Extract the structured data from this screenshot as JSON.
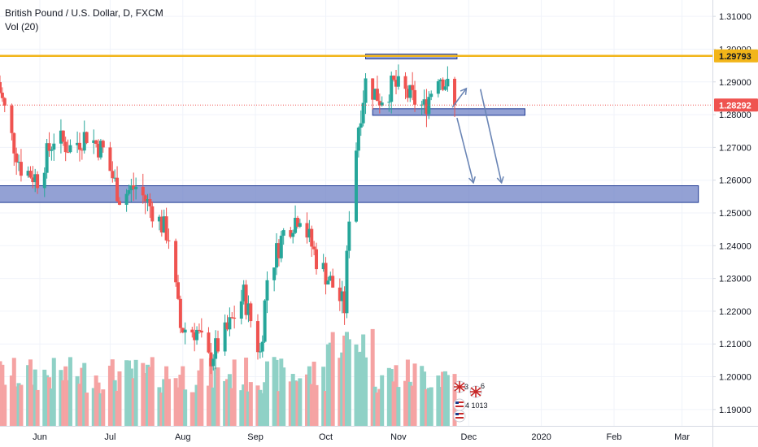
{
  "legend": {
    "title": "British Pound / U.S. Dollar, D, FXCM",
    "volume": "Vol (20)"
  },
  "colors": {
    "up": "#26a69a",
    "down": "#ef5350",
    "up_vol": "#8fd1c6",
    "down_vol": "#f5a3a3",
    "resistance": "#f2b519",
    "current": "#ef5350",
    "zone_fill": "#6f82c6",
    "zone_border": "#1f3a93",
    "arrow": "#6a85b5",
    "grid": "#f0f3fa",
    "axis_border": "#d6dae3"
  },
  "badges": {
    "uk_events": "3",
    "uk_events_2": "6",
    "us_events": "4 1013"
  },
  "chart_data": {
    "type": "candlestick",
    "title": "British Pound / U.S. Dollar, D, FXCM",
    "y_range": [
      1.185,
      1.315
    ],
    "y_ticks": [
      "1.31000",
      "1.30000",
      "1.29000",
      "1.28000",
      "1.27000",
      "1.26000",
      "1.25000",
      "1.24000",
      "1.23000",
      "1.22000",
      "1.21000",
      "1.20000",
      "1.19000"
    ],
    "x_ticks": [
      "Jun",
      "Jul",
      "Aug",
      "Sep",
      "Oct",
      "Nov",
      "Dec",
      "2020",
      "Feb",
      "Mar"
    ],
    "date_range": [
      "2019-05-15",
      "2020-03-14"
    ],
    "resistance_line": {
      "value": 1.29793,
      "label": "1.29793"
    },
    "current_price": {
      "value": 1.28292,
      "label": "1.28292"
    },
    "zones": [
      {
        "from": "2019-10-18",
        "to": "2019-11-26",
        "low": 1.2975,
        "high": 1.2985
      },
      {
        "from": "2019-10-21",
        "to": "2019-12-25",
        "low": 1.2798,
        "high": 1.2818
      },
      {
        "from": "2019-05-13",
        "to": "2020-03-08",
        "low": 1.2532,
        "high": 1.2583
      }
    ],
    "arrows": [
      {
        "from_date": "2019-11-24",
        "from_value": 1.2822,
        "to_date": "2019-11-30",
        "to_value": 1.288
      },
      {
        "from_date": "2019-11-26",
        "from_value": 1.279,
        "to_date": "2019-12-03",
        "to_value": 1.2592
      },
      {
        "from_date": "2019-12-06",
        "from_value": 1.2878,
        "to_date": "2019-12-15",
        "to_value": 1.2592
      }
    ],
    "close_waypoints": [
      [
        "2019-05-14",
        1.29
      ],
      [
        "2019-05-20",
        1.273
      ],
      [
        "2019-05-24",
        1.264
      ],
      [
        "2019-05-31",
        1.2605
      ],
      [
        "2019-06-07",
        1.273
      ],
      [
        "2019-06-14",
        1.27
      ],
      [
        "2019-06-21",
        1.274
      ],
      [
        "2019-06-28",
        1.269
      ],
      [
        "2019-07-05",
        1.255
      ],
      [
        "2019-07-12",
        1.258
      ],
      [
        "2019-07-19",
        1.251
      ],
      [
        "2019-07-26",
        1.243
      ],
      [
        "2019-07-31",
        1.215
      ],
      [
        "2019-08-07",
        1.214
      ],
      [
        "2019-08-12",
        1.205
      ],
      [
        "2019-08-20",
        1.214
      ],
      [
        "2019-08-27",
        1.225
      ],
      [
        "2019-09-03",
        1.207
      ],
      [
        "2019-09-06",
        1.23
      ],
      [
        "2019-09-13",
        1.244
      ],
      [
        "2019-09-20",
        1.25
      ],
      [
        "2019-09-27",
        1.236
      ],
      [
        "2019-10-03",
        1.229
      ],
      [
        "2019-10-09",
        1.221
      ],
      [
        "2019-10-11",
        1.25
      ],
      [
        "2019-10-15",
        1.277
      ],
      [
        "2019-10-18",
        1.29
      ],
      [
        "2019-10-24",
        1.285
      ],
      [
        "2019-10-30",
        1.289
      ],
      [
        "2019-11-05",
        1.286
      ],
      [
        "2019-11-12",
        1.282
      ],
      [
        "2019-11-18",
        1.293
      ],
      [
        "2019-11-21",
        1.29
      ],
      [
        "2019-11-25",
        1.2829
      ]
    ]
  }
}
